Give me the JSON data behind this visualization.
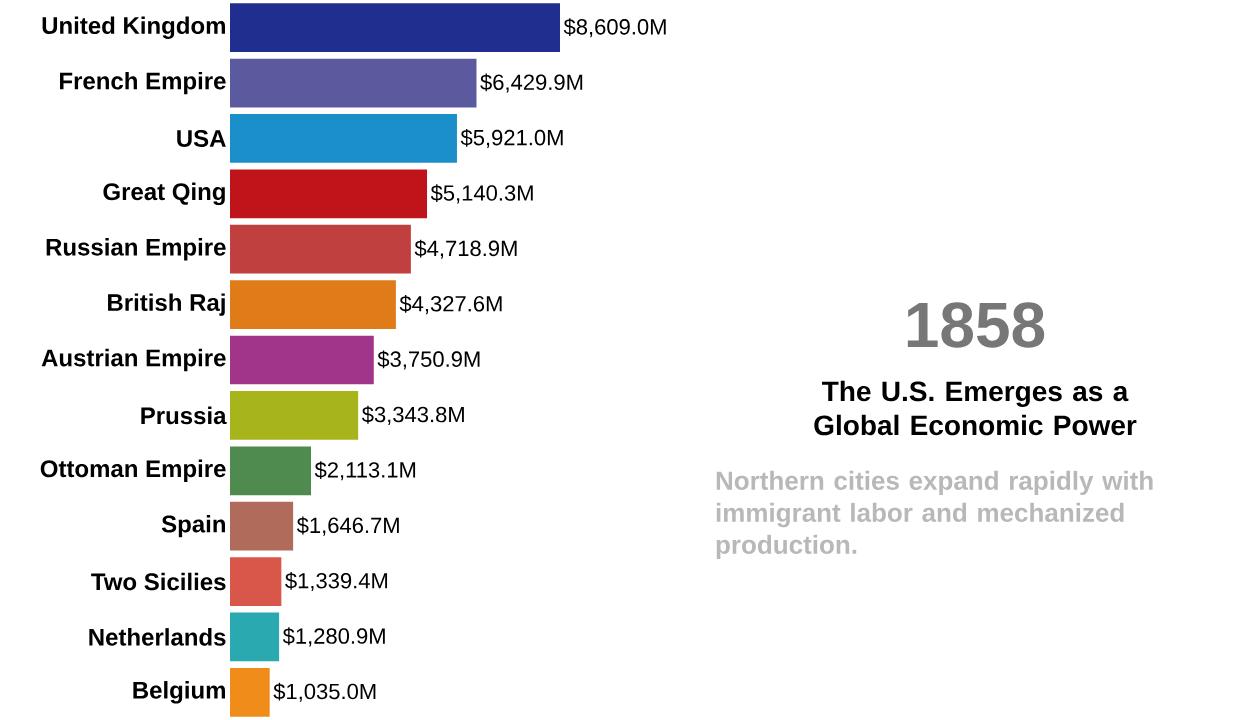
{
  "chart_data": {
    "type": "bar",
    "orientation": "horizontal",
    "categories": [
      "United Kingdom",
      "French Empire",
      "USA",
      "Great Qing",
      "Russian Empire",
      "British Raj",
      "Austrian Empire",
      "Prussia",
      "Ottoman Empire",
      "Spain",
      "Two Sicilies",
      "Netherlands",
      "Belgium"
    ],
    "values": [
      8609.0,
      6429.9,
      5921.0,
      5140.3,
      4718.9,
      4327.6,
      3750.9,
      3343.8,
      2113.1,
      1646.7,
      1339.4,
      1280.9,
      1035.0
    ],
    "value_labels": [
      "$8,609.0M",
      "$6,429.9M",
      "$5,921.0M",
      "$5,140.3M",
      "$4,718.9M",
      "$4,327.6M",
      "$3,750.9M",
      "$3,343.8M",
      "$2,113.1M",
      "$1,646.7M",
      "$1,339.4M",
      "$1,280.9M",
      "$1,035.0M"
    ],
    "colors": [
      "#1f2e8f",
      "#5b5a9e",
      "#1a8fc9",
      "#c0141b",
      "#c0403f",
      "#e07b1a",
      "#a0358a",
      "#a8b41c",
      "#4f8a4e",
      "#b06b5a",
      "#d9574a",
      "#2aa9b0",
      "#ef8c1a"
    ],
    "annotations": [
      "1858",
      "The U.S. Emerges as a Global Economic Power",
      "Northern cities expand rapidly with immigrant labor and mechanized production."
    ]
  }
}
